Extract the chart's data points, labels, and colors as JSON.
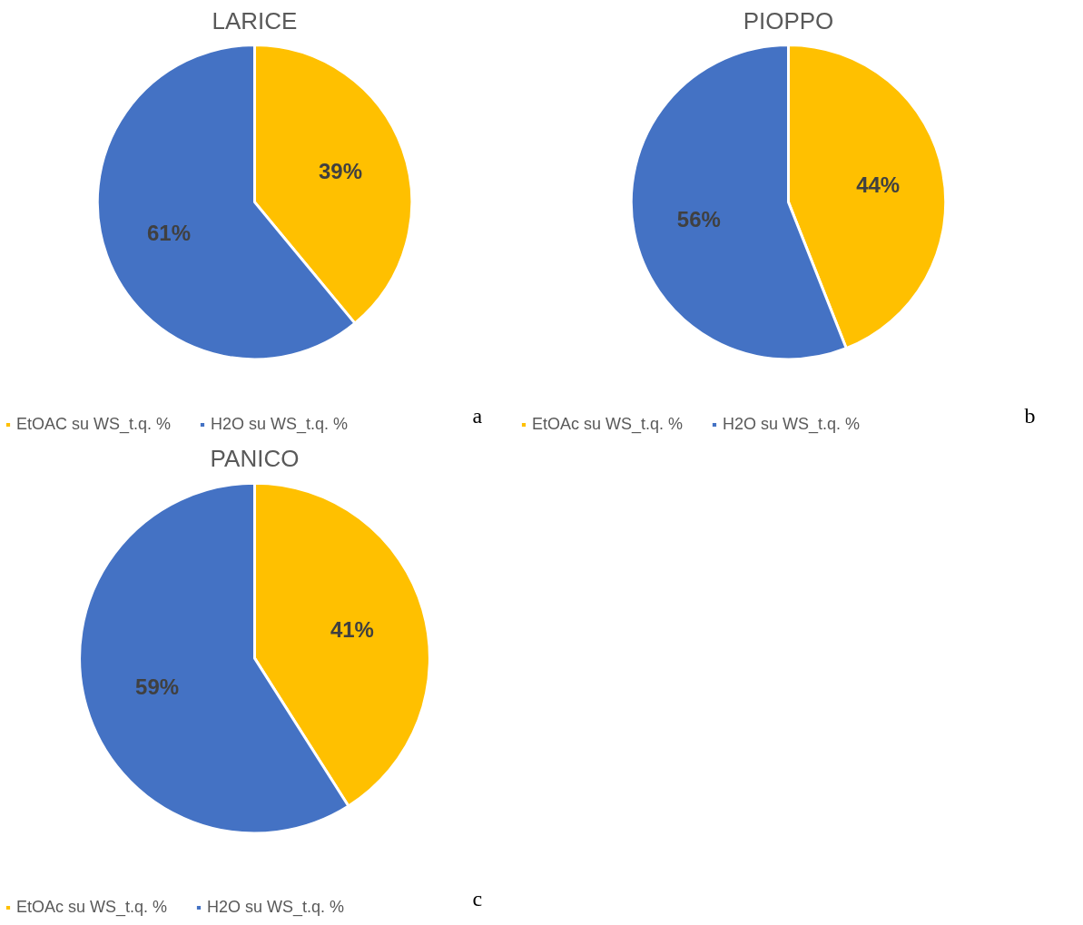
{
  "chart_data": [
    {
      "type": "pie",
      "title": "LARICE",
      "categories": [
        "EtOAC su WS_t.q. %",
        "H2O su WS_t.q. %"
      ],
      "values": [
        39,
        61
      ],
      "colors": [
        "#ffc000",
        "#4472c4"
      ],
      "value_labels": [
        "39%",
        "61%"
      ],
      "legend": "bottom",
      "annotations": [
        "a"
      ]
    },
    {
      "type": "pie",
      "title": "PIOPPO",
      "categories": [
        "EtOAc su WS_t.q. %",
        "H2O su WS_t.q. %"
      ],
      "values": [
        44,
        56
      ],
      "colors": [
        "#ffc000",
        "#4472c4"
      ],
      "value_labels": [
        "44%",
        "56%"
      ],
      "legend": "bottom",
      "annotations": [
        "b"
      ]
    },
    {
      "type": "pie",
      "title": "PANICO",
      "categories": [
        "EtOAc su WS_t.q. %",
        "H2O su WS_t.q. %"
      ],
      "values": [
        41,
        59
      ],
      "colors": [
        "#ffc000",
        "#4472c4"
      ],
      "value_labels": [
        "41%",
        "59%"
      ],
      "legend": "bottom",
      "annotations": [
        "c"
      ]
    }
  ]
}
